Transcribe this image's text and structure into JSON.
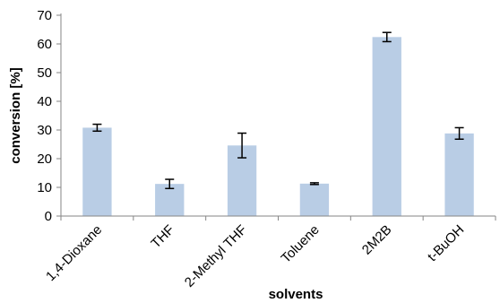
{
  "chart_data": {
    "type": "bar",
    "categories": [
      "1,4-Dioxane",
      "THF",
      "2-Methyl THF",
      "Toluene",
      "2M2B",
      "t-BuOH"
    ],
    "values": [
      30.8,
      11.2,
      24.6,
      11.3,
      62.4,
      28.8
    ],
    "error": [
      1.2,
      1.6,
      4.3,
      0.3,
      1.6,
      2.0
    ],
    "xlabel": "solvents",
    "ylabel": "conversion [%]",
    "ylim": [
      0,
      70
    ],
    "yticks": [
      0,
      10,
      20,
      30,
      40,
      50,
      60,
      70
    ],
    "grid": false,
    "legend": "none",
    "bar_color": "#b9cde5",
    "axis_color": "#868686"
  }
}
